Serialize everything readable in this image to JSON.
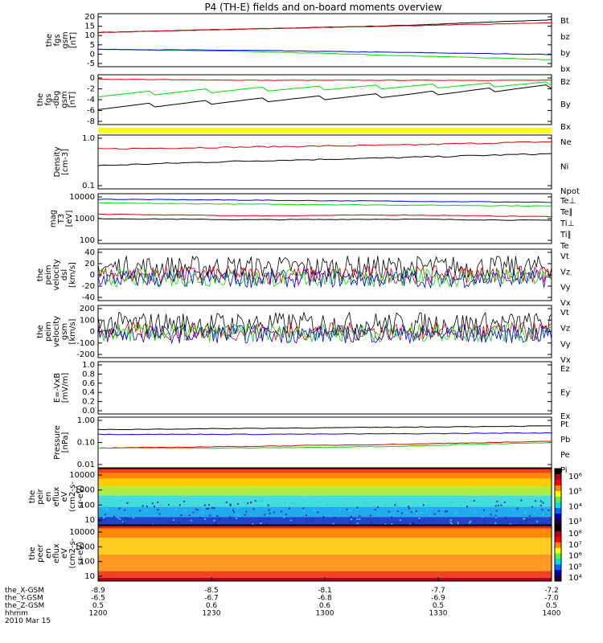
{
  "title": "P4 (TH-E) fields and on-board moments overview",
  "colors": {
    "black": "#000000",
    "red": "#dd0000",
    "green": "#00dd00",
    "blue": "#0000dd",
    "yellow": "#ffff00"
  },
  "chart_data": [
    {
      "id": "fgs",
      "type": "line",
      "ylabel": [
        "the",
        "fgs",
        "gsm",
        "[nT]"
      ],
      "yticks": [
        "20",
        "15",
        "10",
        "5",
        "0",
        "-5"
      ],
      "ylim": [
        -5,
        21
      ],
      "series": [
        {
          "name": "Bt",
          "color": "black",
          "values": [
            11.8,
            13.5,
            15.2,
            18.0
          ]
        },
        {
          "name": "bz",
          "color": "red",
          "values": [
            11.8,
            13.5,
            15.0,
            16.5
          ]
        },
        {
          "name": "by",
          "color": "green",
          "values": [
            3.5,
            2.5,
            0.5,
            -1.5
          ]
        },
        {
          "name": "bx",
          "color": "blue",
          "values": [
            3.5,
            3.0,
            2.0,
            1.0
          ]
        }
      ]
    },
    {
      "id": "fgs_dbg",
      "type": "line",
      "ylabel": [
        "the",
        "fgs",
        "-dbg",
        "gsm",
        "[nT]"
      ],
      "yticks": [
        "0",
        "-2",
        "-4",
        "-6",
        "-8"
      ],
      "ylim": [
        -8.5,
        0.5
      ],
      "series": [
        {
          "name": "Bz",
          "color": "red",
          "values": [
            -0.3,
            -0.5,
            -0.5,
            -0.5
          ]
        },
        {
          "name": "By",
          "color": "green",
          "values": [
            -3.5,
            -2.5,
            -2.0,
            -1.5
          ]
        },
        {
          "name": "Bx",
          "color": "black",
          "values": [
            -5.8,
            -4.5,
            -3.5,
            -2.0
          ]
        }
      ]
    },
    {
      "id": "density",
      "type": "line",
      "log": true,
      "ylabel": [
        "Density",
        "[cm-3]"
      ],
      "yticks": [
        "1.0",
        "0.1"
      ],
      "ylim": [
        0.1,
        1.0
      ],
      "series": [
        {
          "name": "Ne",
          "color": "red",
          "values": [
            0.55,
            0.6,
            0.65,
            0.75
          ]
        },
        {
          "name": "Ni",
          "color": "black",
          "values": [
            0.27,
            0.33,
            0.38,
            0.45
          ]
        },
        {
          "name": "Npot",
          "color": "blue",
          "values": []
        }
      ]
    },
    {
      "id": "temperature",
      "type": "line",
      "log": true,
      "ylabel": [
        "mag",
        "T3",
        "[eV]"
      ],
      "yticks": [
        "10000",
        "1000",
        "100"
      ],
      "ylim": [
        100,
        10000
      ],
      "series": [
        {
          "name": "Te⊥",
          "color": "red",
          "values": [
            1500,
            1300,
            1400,
            1200
          ]
        },
        {
          "name": "Te∥",
          "color": "black",
          "values": []
        },
        {
          "name": "Ti⊥",
          "color": "blue",
          "values": [
            6000,
            5500,
            5000,
            4500
          ]
        },
        {
          "name": "Ti∥",
          "color": "green",
          "values": [
            4200,
            3800,
            3500,
            3200
          ]
        },
        {
          "name": "Te",
          "color": "black",
          "values": [
            1000,
            900,
            950,
            850
          ]
        }
      ]
    },
    {
      "id": "peim_dsl",
      "type": "line",
      "ylabel": [
        "the",
        "peim",
        "velocity",
        "dsl",
        "[km/s]"
      ],
      "yticks": [
        "40",
        "20",
        "0",
        "-20",
        "-40"
      ],
      "ylim": [
        -40,
        40
      ],
      "series": [
        {
          "name": "Vt",
          "color": "black",
          "values": [
            12,
            12,
            12,
            12
          ]
        },
        {
          "name": "Vz",
          "color": "red",
          "values": [
            0,
            0,
            0,
            0
          ]
        },
        {
          "name": "Vy",
          "color": "green",
          "values": [
            -5,
            -5,
            -5,
            -5
          ]
        },
        {
          "name": "Vx",
          "color": "blue",
          "values": [
            -6,
            -6,
            -6,
            -6
          ]
        }
      ]
    },
    {
      "id": "peim_gsm",
      "type": "line",
      "ylabel": [
        "the",
        "peim",
        "velocity",
        "gsm",
        "[km/s]"
      ],
      "yticks": [
        "200",
        "100",
        "0",
        "-100",
        "-200"
      ],
      "ylim": [
        -200,
        200
      ],
      "series": [
        {
          "name": "Vt",
          "color": "black",
          "values": [
            60,
            60,
            60,
            60
          ]
        },
        {
          "name": "Vz",
          "color": "red",
          "values": [
            0,
            0,
            0,
            0
          ]
        },
        {
          "name": "Vy",
          "color": "green",
          "values": [
            -10,
            -10,
            -10,
            -10
          ]
        },
        {
          "name": "Vx",
          "color": "blue",
          "values": [
            -20,
            -20,
            -20,
            -20
          ]
        }
      ]
    },
    {
      "id": "efield",
      "type": "line",
      "ylabel": [
        "E=-VxB",
        "[mV/m]"
      ],
      "yticks": [
        "1.0",
        "0.8",
        "0.6",
        "0.4",
        "0.2",
        "0.0"
      ],
      "ylim": [
        0,
        1
      ],
      "series": [
        {
          "name": "Ez",
          "color": "red",
          "values": []
        },
        {
          "name": "Ey",
          "color": "green",
          "values": []
        },
        {
          "name": "Ex",
          "color": "blue",
          "values": []
        }
      ]
    },
    {
      "id": "pressure",
      "type": "line",
      "log": true,
      "ylabel": [
        "Pressure",
        "[nPa]"
      ],
      "yticks": [
        "1.00",
        "0.10",
        "0.01"
      ],
      "ylim": [
        0.01,
        1.0
      ],
      "series": [
        {
          "name": "Pt",
          "color": "black",
          "values": [
            0.32,
            0.36,
            0.4,
            0.45
          ]
        },
        {
          "name": "Pb",
          "color": "red",
          "values": [
            0.06,
            0.07,
            0.085,
            0.11
          ]
        },
        {
          "name": "Pe",
          "color": "green",
          "values": [
            0.06,
            0.06,
            0.07,
            0.1
          ]
        },
        {
          "name": "Pi",
          "color": "blue",
          "values": [
            0.21,
            0.21,
            0.22,
            0.24
          ]
        }
      ]
    },
    {
      "id": "peir",
      "type": "heatmap",
      "ylabel": [
        "the",
        "peir",
        "en",
        "eflux",
        "eV",
        "(cm2-s-",
        "sr-eV)"
      ],
      "yticks": [
        "10000",
        "1000",
        "100",
        "10"
      ],
      "colorbar": [
        "10⁶",
        "10⁵",
        "10⁴",
        "10³"
      ]
    },
    {
      "id": "peer",
      "type": "heatmap",
      "ylabel": [
        "the",
        "peer",
        "en",
        "eflux",
        "eV",
        "(cm2-s-",
        "sr-eV)"
      ],
      "yticks": [
        "10000",
        "1000",
        "100",
        "10"
      ],
      "colorbar": [
        "10⁸",
        "10⁷",
        "10⁶",
        "10⁵",
        "10⁴"
      ]
    }
  ],
  "xaxis": {
    "rows": [
      {
        "label": "the_X-GSM",
        "values": [
          "-8.9",
          "-8.5",
          "-8.1",
          "-7.7",
          "-7.2"
        ]
      },
      {
        "label": "the_Y-GSM",
        "values": [
          "-6.5",
          "-6.7",
          "-6.8",
          "-6.9",
          "-7.0"
        ]
      },
      {
        "label": "the_Z-GSM",
        "values": [
          "0.5",
          "0.6",
          "0.6",
          "0.5",
          "0.5"
        ]
      },
      {
        "label": "hhmm",
        "values": [
          "1200",
          "1230",
          "1300",
          "1330",
          "1400"
        ]
      }
    ],
    "date": "2010 Mar 15"
  }
}
